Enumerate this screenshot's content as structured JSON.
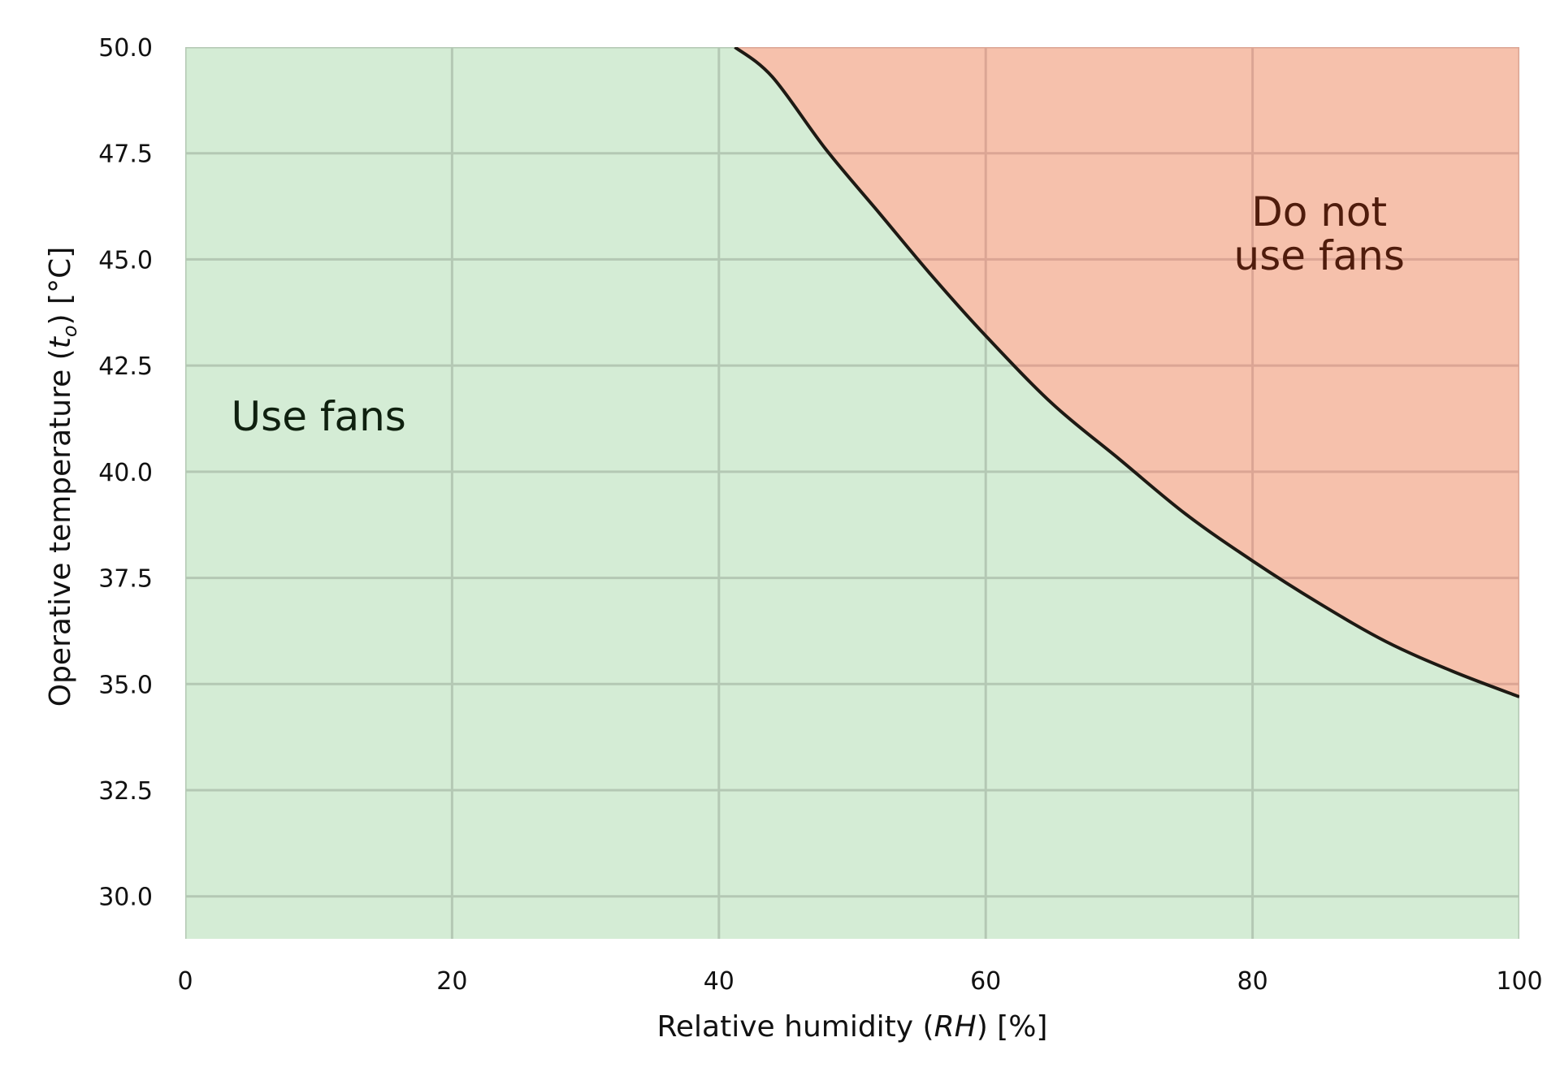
{
  "chart_data": {
    "type": "area",
    "title": "",
    "xlabel": {
      "pre": "Relative humidity (",
      "sym": "RH",
      "post": ") [%]"
    },
    "ylabel": {
      "pre": "Operative temperature (",
      "sym": "t",
      "sub": "o",
      "post": ") [°C]"
    },
    "xlim": [
      0,
      100
    ],
    "ylim": [
      29,
      50
    ],
    "xticks": [
      0,
      20,
      40,
      60,
      80,
      100
    ],
    "xtick_labels": [
      "0",
      "20",
      "40",
      "60",
      "80",
      "100"
    ],
    "yticks": [
      30.0,
      32.5,
      35.0,
      37.5,
      40.0,
      42.5,
      45.0,
      47.5,
      50.0
    ],
    "ytick_labels": [
      "30.0",
      "32.5",
      "35.0",
      "37.5",
      "40.0",
      "42.5",
      "45.0",
      "47.5",
      "50.0"
    ],
    "grid": true,
    "boundary": {
      "x": [
        41.2,
        44,
        48,
        52,
        56,
        60,
        65,
        70,
        75,
        80,
        85,
        90,
        95,
        100
      ],
      "y": [
        50.0,
        49.3,
        47.6,
        46.1,
        44.6,
        43.2,
        41.6,
        40.3,
        39.0,
        37.9,
        36.9,
        36.0,
        35.3,
        34.7
      ]
    },
    "regions": [
      {
        "name": "use-fans",
        "label": [
          "Use fans"
        ],
        "anchor": {
          "x": 10,
          "y": 41.3
        },
        "fill": "#d4ecd5",
        "text_color": "#0f200f"
      },
      {
        "name": "do-not-use-fans",
        "label": [
          "Do not",
          "use fans"
        ],
        "anchor": {
          "x": 85,
          "y": 45.6
        },
        "fill": "#f6c1ac",
        "text_color": "#4f1c0c"
      }
    ],
    "boundary_color": "#1e1a14",
    "grid_color_green": "#b4c8b4",
    "grid_color_red": "#dba594"
  }
}
